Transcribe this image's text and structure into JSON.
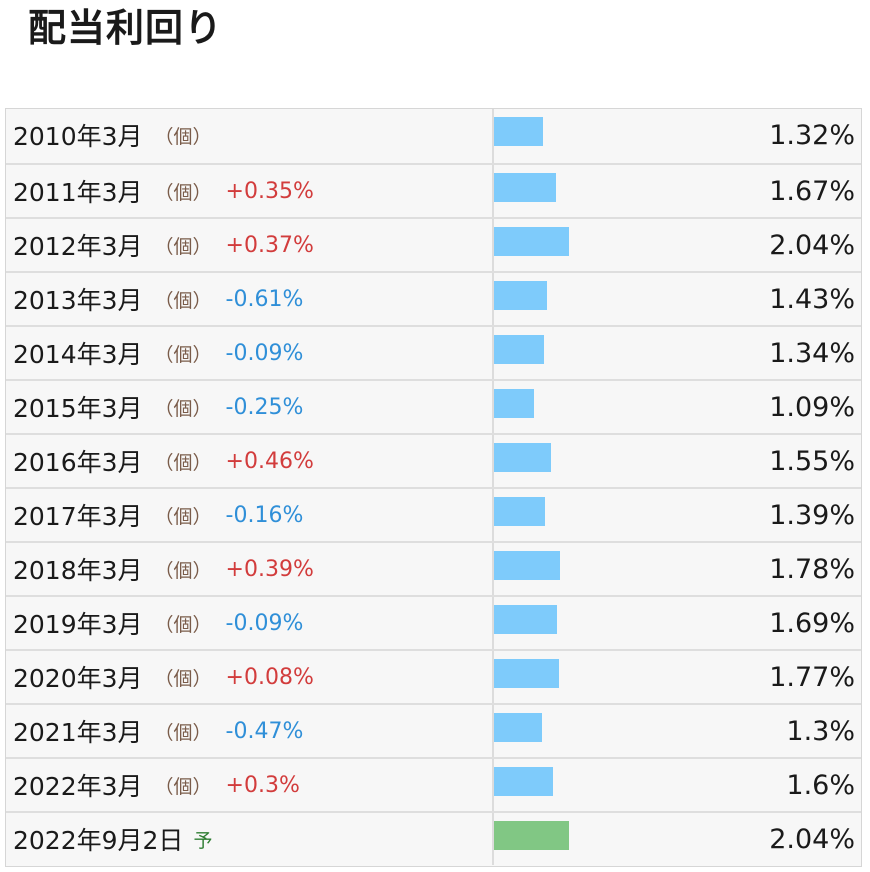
{
  "page": {
    "title": "配当利回り"
  },
  "chart_data": {
    "type": "bar",
    "orientation": "horizontal",
    "unit": "%",
    "rows": [
      {
        "period": "2010年3月",
        "kind": "（個）",
        "change": "",
        "value": 1.32,
        "value_label": "1.32%",
        "forecast": false
      },
      {
        "period": "2011年3月",
        "kind": "（個）",
        "change": "+0.35%",
        "value": 1.67,
        "value_label": "1.67%",
        "forecast": false
      },
      {
        "period": "2012年3月",
        "kind": "（個）",
        "change": "+0.37%",
        "value": 2.04,
        "value_label": "2.04%",
        "forecast": false
      },
      {
        "period": "2013年3月",
        "kind": "（個）",
        "change": "-0.61%",
        "value": 1.43,
        "value_label": "1.43%",
        "forecast": false
      },
      {
        "period": "2014年3月",
        "kind": "（個）",
        "change": "-0.09%",
        "value": 1.34,
        "value_label": "1.34%",
        "forecast": false
      },
      {
        "period": "2015年3月",
        "kind": "（個）",
        "change": "-0.25%",
        "value": 1.09,
        "value_label": "1.09%",
        "forecast": false
      },
      {
        "period": "2016年3月",
        "kind": "（個）",
        "change": "+0.46%",
        "value": 1.55,
        "value_label": "1.55%",
        "forecast": false
      },
      {
        "period": "2017年3月",
        "kind": "（個）",
        "change": "-0.16%",
        "value": 1.39,
        "value_label": "1.39%",
        "forecast": false
      },
      {
        "period": "2018年3月",
        "kind": "（個）",
        "change": "+0.39%",
        "value": 1.78,
        "value_label": "1.78%",
        "forecast": false
      },
      {
        "period": "2019年3月",
        "kind": "（個）",
        "change": "-0.09%",
        "value": 1.69,
        "value_label": "1.69%",
        "forecast": false
      },
      {
        "period": "2020年3月",
        "kind": "（個）",
        "change": "+0.08%",
        "value": 1.77,
        "value_label": "1.77%",
        "forecast": false
      },
      {
        "period": "2021年3月",
        "kind": "（個）",
        "change": "-0.47%",
        "value": 1.3,
        "value_label": "1.3%",
        "forecast": false
      },
      {
        "period": "2022年3月",
        "kind": "（個）",
        "change": "+0.3%",
        "value": 1.6,
        "value_label": "1.6%",
        "forecast": false
      },
      {
        "period": "2022年9月2日",
        "kind": "予",
        "change": "",
        "value": 2.04,
        "value_label": "2.04%",
        "forecast": true
      }
    ],
    "colors": {
      "bar": "#7ecbfb",
      "forecast_bar": "#81c784",
      "change_up": "#d23c3c",
      "change_down": "#2f8fd8"
    }
  }
}
